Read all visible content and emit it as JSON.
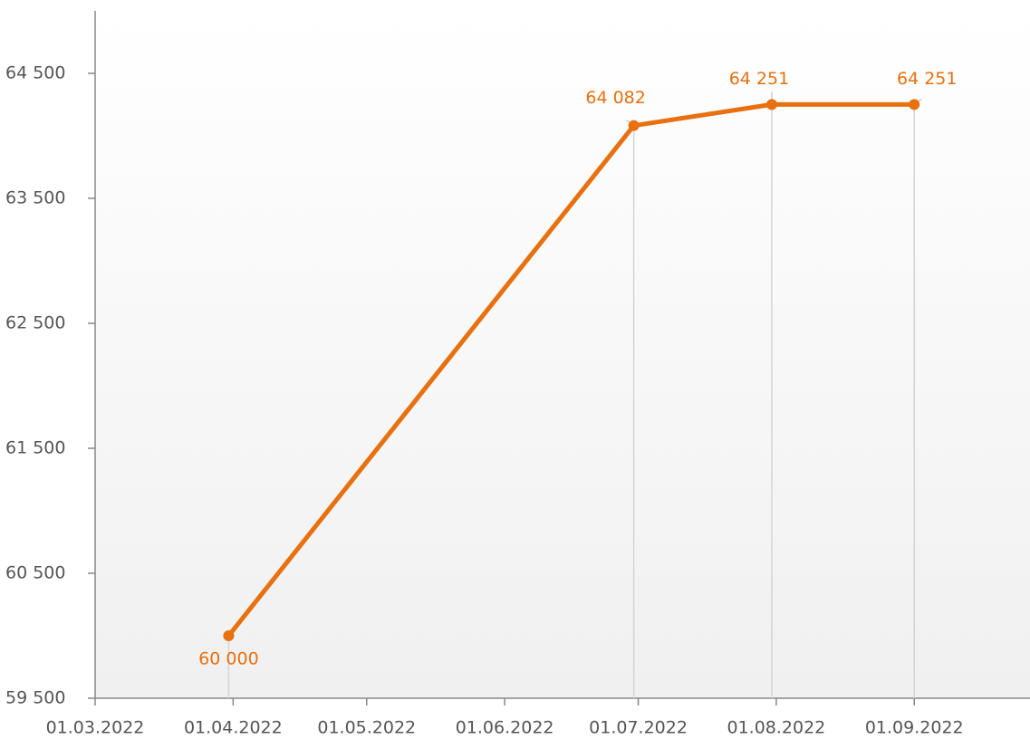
{
  "chart_data": {
    "type": "line",
    "x": [
      "31.03.2022",
      "30.06.2022",
      "31.07.2022",
      "01.09.2022"
    ],
    "series": [
      {
        "color": "#e8700f",
        "values": [
          60000,
          64082,
          64251,
          64251
        ],
        "value_labels": [
          "60 000",
          "64 082",
          "64 251",
          "64 251"
        ]
      }
    ],
    "xlim": [
      "01.03.2022",
      "27.09.2022"
    ],
    "xticks": [
      "01.03.2022",
      "01.04.2022",
      "01.05.2022",
      "01.06.2022",
      "01.07.2022",
      "01.08.2022",
      "01.09.2022"
    ],
    "ylim": [
      59500,
      65000
    ],
    "yticks": [
      {
        "value": 59500,
        "label": "59 500"
      },
      {
        "value": 60500,
        "label": "60 500"
      },
      {
        "value": 61500,
        "label": "61 500"
      },
      {
        "value": 62500,
        "label": "62 500"
      },
      {
        "value": 63500,
        "label": "63 500"
      },
      {
        "value": 64500,
        "label": "64 500"
      }
    ]
  }
}
